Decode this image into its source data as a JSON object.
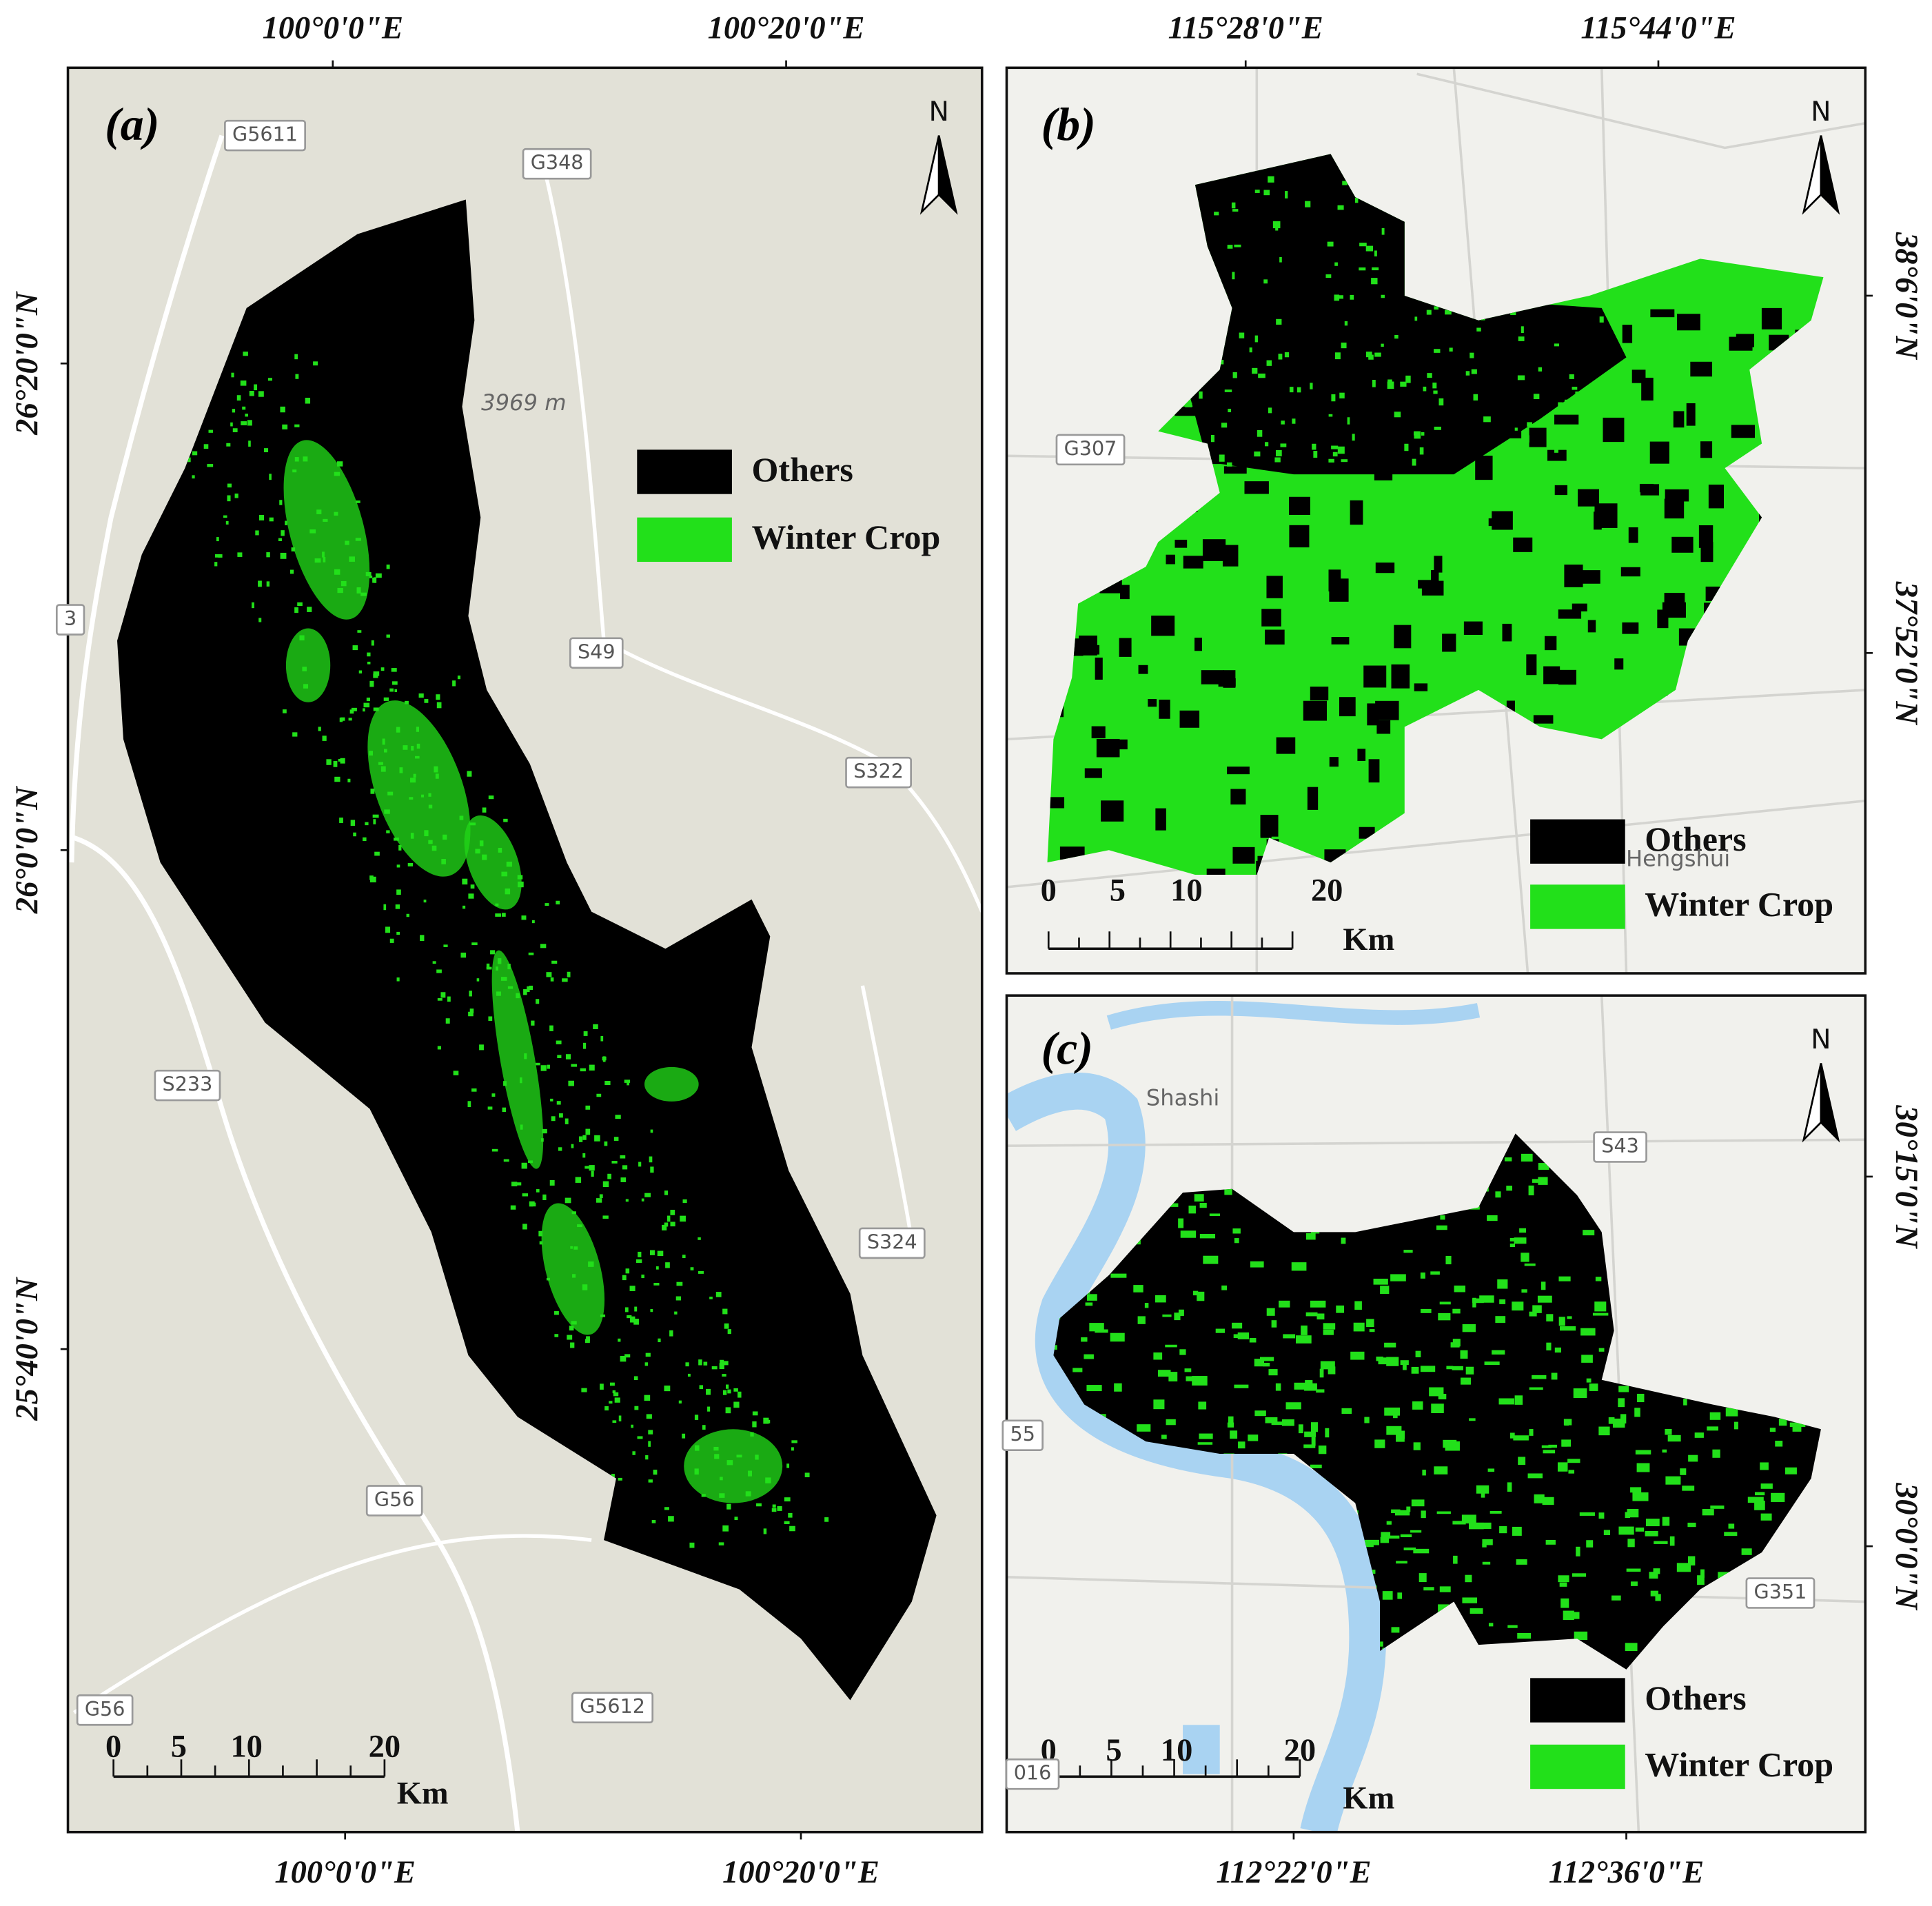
{
  "panels": [
    {
      "label": "(a)",
      "top_ticks": [
        "100°0'0\"E",
        "100°20'0\"E"
      ],
      "bottom_ticks": [
        "100°0'0\"E",
        "100°20'0\"E"
      ],
      "left_ticks": [
        "26°20'0\"N",
        "26°0'0\"N",
        "25°40'0\"N"
      ],
      "north": "N",
      "legend": [
        "Others",
        "Winter Crop"
      ],
      "scale_ticks": [
        "0",
        "5",
        "10",
        "20"
      ],
      "scale_unit": "Km",
      "road_labels": [
        "G5611",
        "G348",
        "S49",
        "S322",
        "S233",
        "S324",
        "G56",
        "G56",
        "G5612",
        "3"
      ],
      "place_labels": [
        "3969 m"
      ]
    },
    {
      "label": "(b)",
      "top_ticks": [
        "115°28'0\"E",
        "115°44'0\"E"
      ],
      "right_ticks": [
        "38°6'0\"N",
        "37°52'0\"N"
      ],
      "north": "N",
      "legend": [
        "Others",
        "Winter Crop"
      ],
      "scale_ticks": [
        "0",
        "5",
        "10",
        "20"
      ],
      "scale_unit": "Km",
      "road_labels": [
        "G307"
      ],
      "place_labels": [
        "Hengshui"
      ]
    },
    {
      "label": "(c)",
      "bottom_ticks": [
        "112°22'0\"E",
        "112°36'0\"E"
      ],
      "right_ticks": [
        "30°15'0\"N",
        "30°0'0\"N"
      ],
      "north": "N",
      "legend": [
        "Others",
        "Winter Crop"
      ],
      "scale_ticks": [
        "0",
        "5",
        "10",
        "20"
      ],
      "scale_unit": "Km",
      "road_labels": [
        "S43",
        "G351",
        "55",
        "016"
      ],
      "place_labels": [
        "Shashi"
      ]
    }
  ]
}
